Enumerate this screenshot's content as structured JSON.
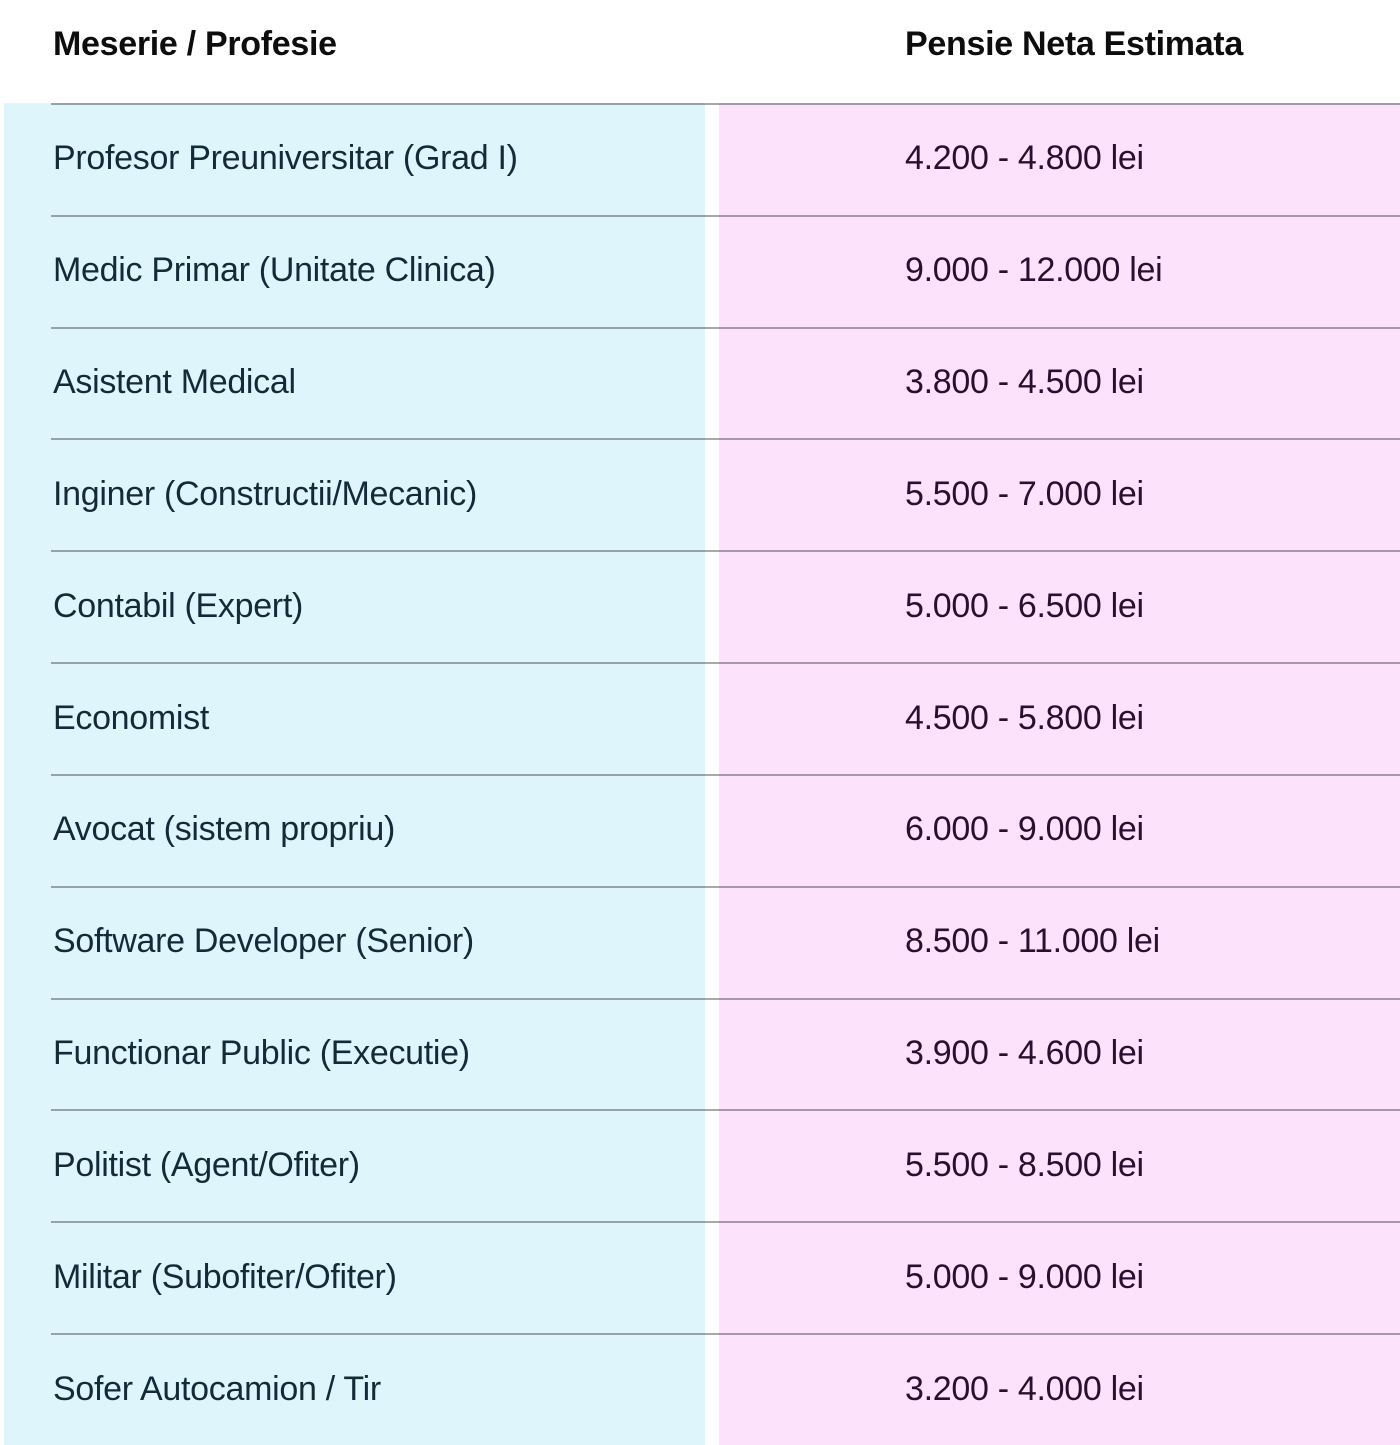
{
  "table": {
    "headers": {
      "profession": "Meserie / Profesie",
      "pension": "Pensie Neta Estimata"
    },
    "rows": [
      {
        "profession": "Profesor Preuniversitar (Grad I)",
        "pension": "4.200 - 4.800 lei"
      },
      {
        "profession": "Medic Primar (Unitate Clinica)",
        "pension": "9.000 - 12.000 lei"
      },
      {
        "profession": "Asistent Medical",
        "pension": "3.800 - 4.500 lei"
      },
      {
        "profession": "Inginer (Constructii/Mecanic)",
        "pension": "5.500 - 7.000 lei"
      },
      {
        "profession": "Contabil (Expert)",
        "pension": "5.000 - 6.500 lei"
      },
      {
        "profession": "Economist",
        "pension": "4.500 - 5.800 lei"
      },
      {
        "profession": "Avocat (sistem propriu)",
        "pension": "6.000 - 9.000 lei"
      },
      {
        "profession": "Software Developer (Senior)",
        "pension": "8.500 - 11.000 lei"
      },
      {
        "profession": "Functionar Public (Executie)",
        "pension": "3.900 - 4.600 lei"
      },
      {
        "profession": "Politist (Agent/Ofiter)",
        "pension": "5.500 - 8.500 lei"
      },
      {
        "profession": "Militar (Subofiter/Ofiter)",
        "pension": "5.000 - 9.000 lei"
      },
      {
        "profession": "Sofer Autocamion / Tir",
        "pension": "3.200 - 4.000 lei"
      }
    ],
    "colors": {
      "profession_column_bg": "#dff5fc",
      "pension_column_bg": "#fce2fa",
      "divider": "rgba(60,64,67,0.45)",
      "header_text": "#0d0d0d",
      "profession_text": "#112b38",
      "pension_text": "#291030"
    }
  }
}
